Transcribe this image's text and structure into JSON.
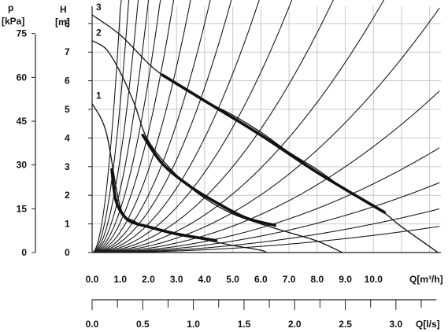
{
  "chart_data": {
    "type": "line",
    "title": "",
    "left_axis": {
      "label": "p",
      "unit": "[kPa]",
      "ticks": [
        "75",
        "60",
        "45",
        "30",
        "15",
        "0"
      ],
      "values": [
        75,
        60,
        45,
        30,
        15,
        0
      ]
    },
    "right_axis": {
      "label": "H",
      "unit": "[m]",
      "ticks": [
        "8",
        "7",
        "6",
        "5",
        "4",
        "3",
        "2",
        "1",
        "0"
      ],
      "values": [
        8,
        7,
        6,
        5,
        4,
        3,
        2,
        1,
        0
      ],
      "ylim": [
        0,
        8.6
      ]
    },
    "x_axis": {
      "label": "Q[m³/h]",
      "ticks": [
        "0.0",
        "1.0",
        "2.0",
        "3.0",
        "4.0",
        "5.0",
        "6.0",
        "7.0",
        "8.0",
        "9.0",
        "10.0"
      ],
      "values": [
        0,
        1,
        2,
        3,
        4,
        5,
        6,
        7,
        8,
        9,
        10
      ],
      "xlim": [
        0,
        12.4
      ]
    },
    "x2_axis": {
      "label": "Q[l/s]",
      "ticks": [
        "0.0",
        "0.5",
        "1.0",
        "1.5",
        "2.0",
        "2.5",
        "3.0"
      ],
      "values": [
        0,
        0.5,
        1.0,
        1.5,
        2.0,
        2.5,
        3.0
      ]
    },
    "grid": true,
    "pump_curves": [
      {
        "label": "1",
        "x": [
          0,
          0.5,
          1,
          1.5,
          2,
          3,
          4,
          5,
          6,
          6.2
        ],
        "y": [
          5.2,
          4.2,
          1.6,
          1.1,
          0.9,
          0.65,
          0.45,
          0.25,
          0.08,
          0
        ],
        "operating_range": {
          "x": [
            0.7,
            0.85,
            1.2,
            1.6,
            2.0,
            3.0,
            4.4
          ],
          "y": [
            2.9,
            1.8,
            1.2,
            1.0,
            0.9,
            0.65,
            0.42
          ]
        }
      },
      {
        "label": "2",
        "x": [
          0,
          0.5,
          1,
          1.5,
          2,
          3,
          4,
          5,
          6,
          7,
          8,
          8.9
        ],
        "y": [
          7.4,
          7.1,
          6.3,
          5.2,
          3.9,
          2.7,
          1.9,
          1.35,
          1.0,
          0.7,
          0.4,
          0
        ],
        "operating_range": {
          "x": [
            1.8,
            2.5,
            3.5,
            4.5,
            5.5,
            6.5
          ],
          "y": [
            4.1,
            3.1,
            2.3,
            1.7,
            1.2,
            0.95
          ]
        }
      },
      {
        "label": "3",
        "x": [
          0,
          1,
          2,
          2.5,
          3,
          4,
          5,
          6,
          7,
          8,
          9,
          10,
          10.5,
          11,
          12.3
        ],
        "y": [
          8.3,
          7.6,
          6.6,
          6.2,
          5.9,
          5.3,
          4.8,
          4.2,
          3.5,
          2.9,
          2.2,
          1.6,
          1.3,
          0.9,
          0
        ],
        "operating_range": {
          "x": [
            2.5,
            4,
            6,
            8,
            10.4
          ],
          "y": [
            6.2,
            5.3,
            4.1,
            2.8,
            1.4
          ]
        }
      }
    ],
    "system_curves_k": [
      8.5,
      5.2,
      3.3,
      2.2,
      1.5,
      1.05,
      0.72,
      0.5,
      0.36,
      0.25,
      0.175,
      0.12,
      0.082,
      0.056,
      0.037,
      0.024,
      0.016,
      0.01,
      0.006
    ]
  }
}
